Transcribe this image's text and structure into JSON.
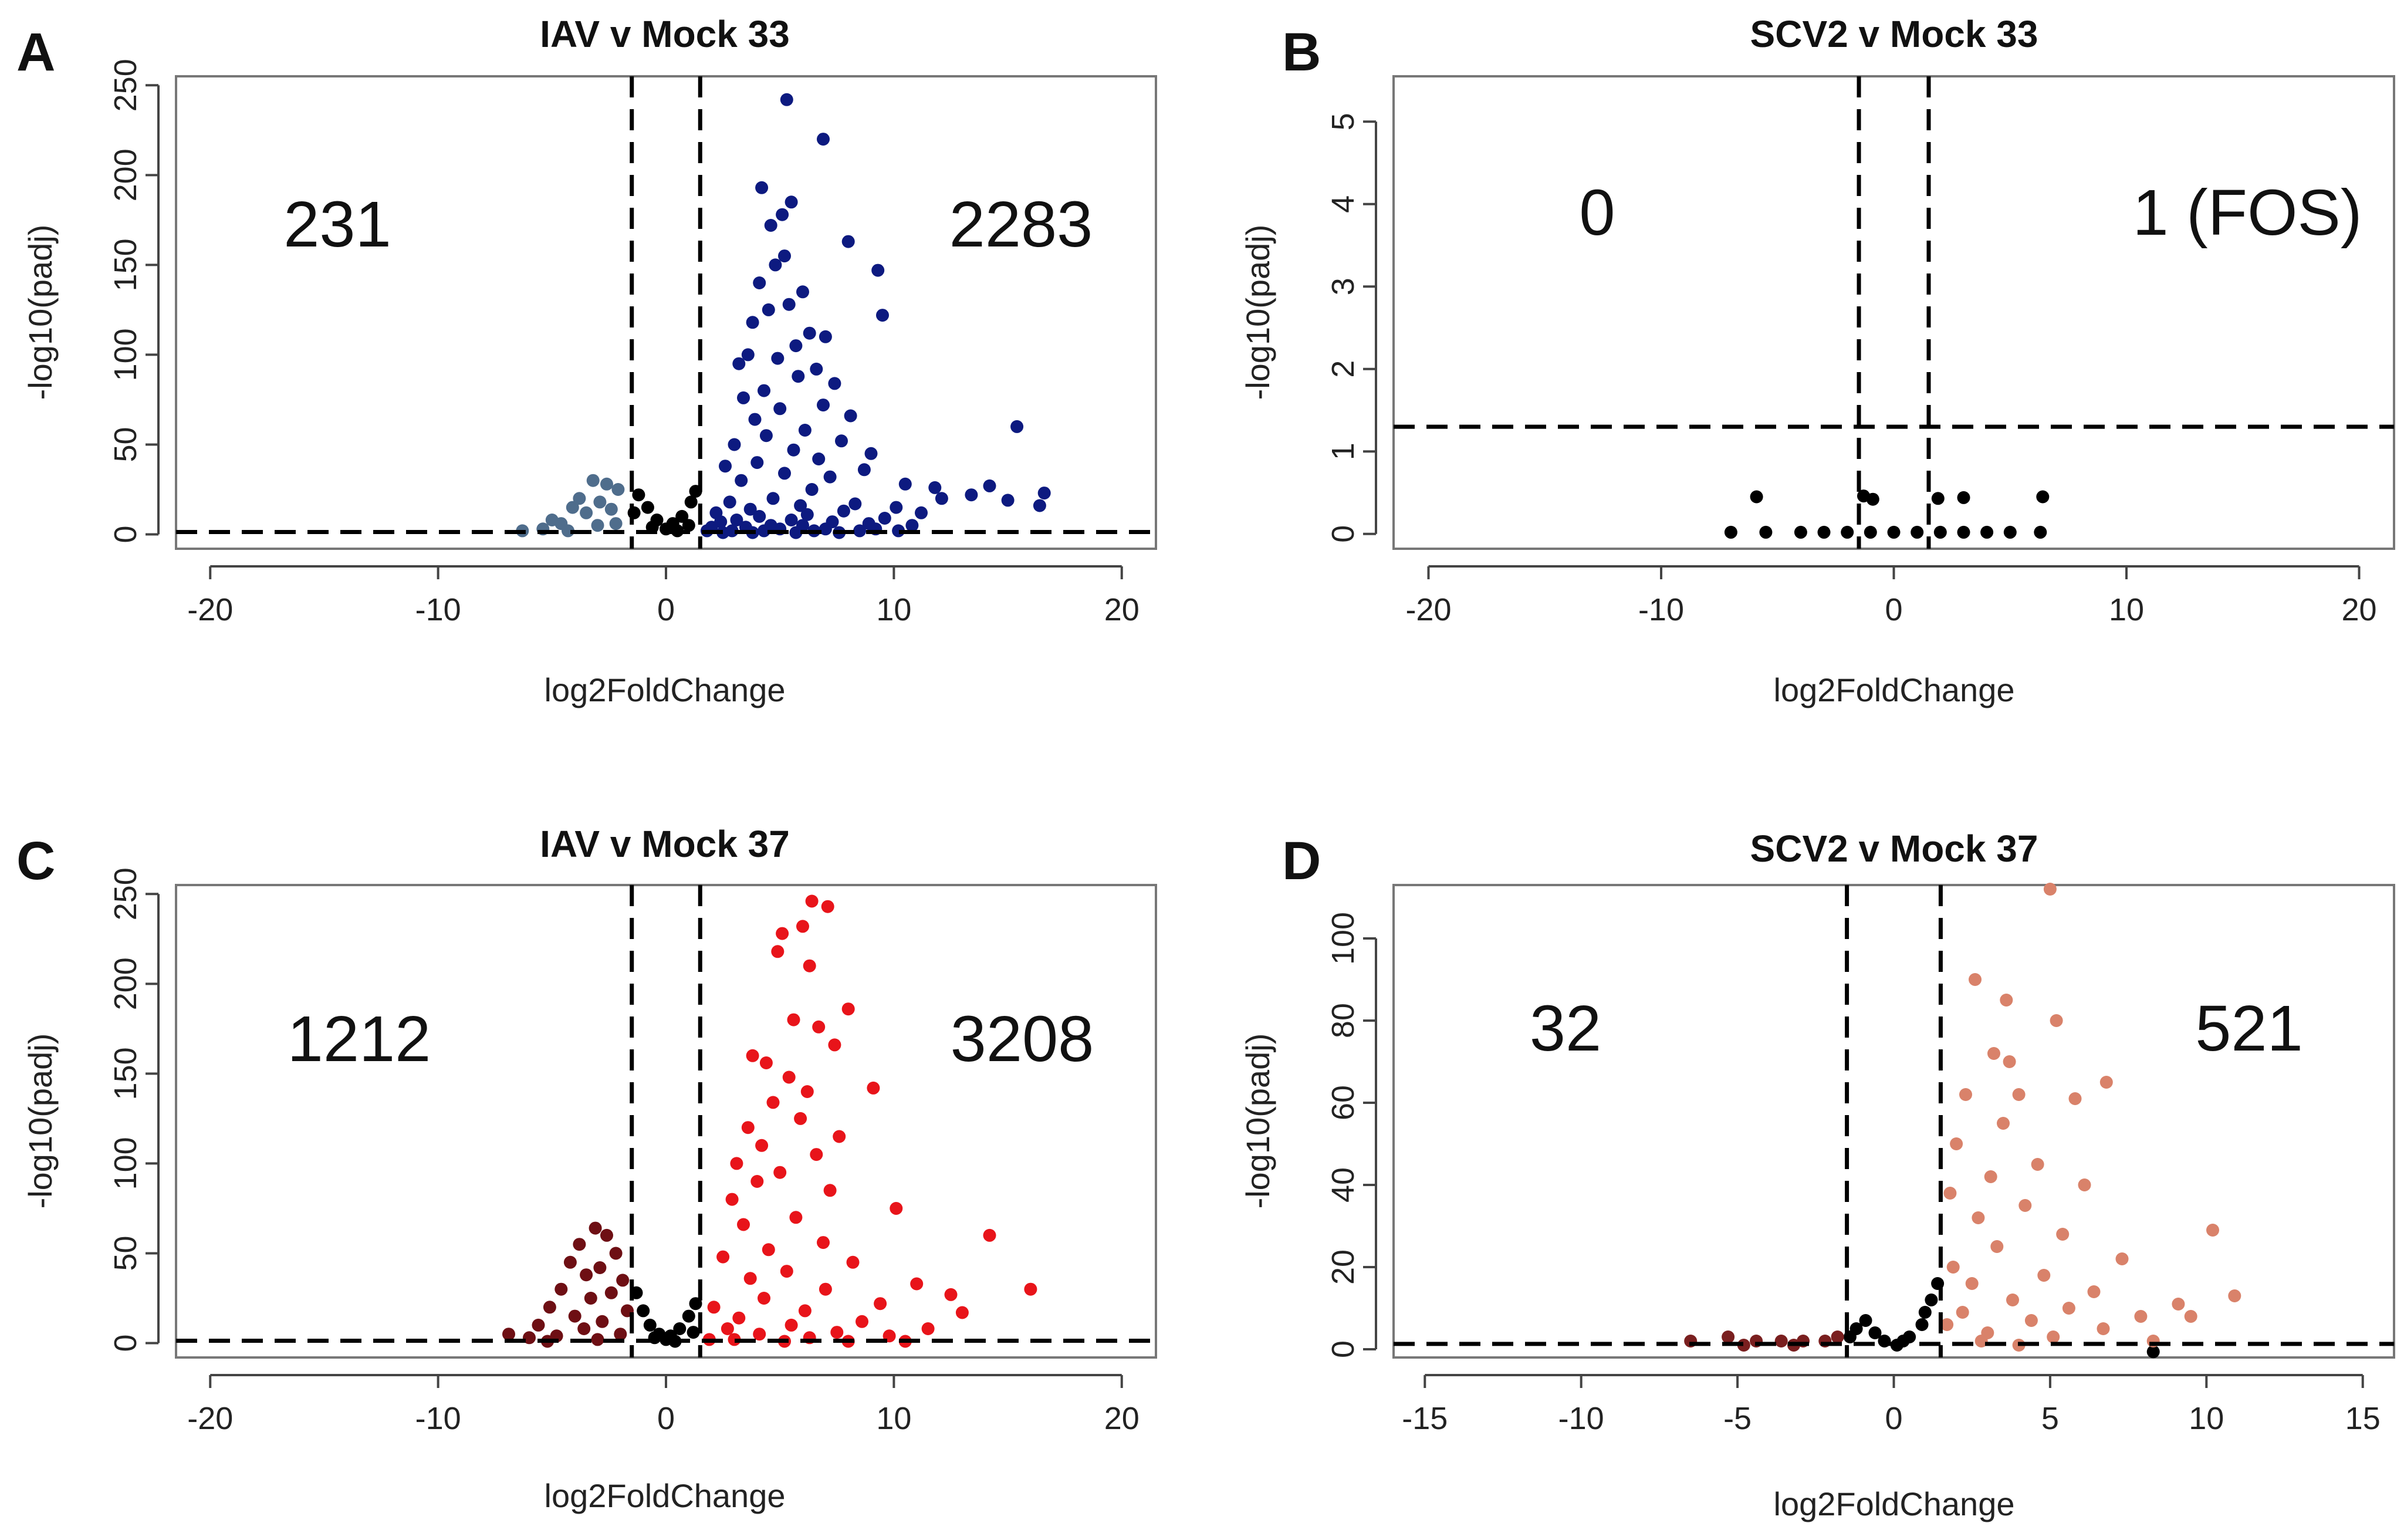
{
  "chart_data": [
    {
      "panel": "A",
      "type": "scatter",
      "title": "IAV v Mock 33",
      "xlabel": "log2FoldChange",
      "ylabel": "-log10(padj)",
      "xlim": [
        -21.5,
        21.5
      ],
      "ylim": [
        -8,
        255
      ],
      "xticks": [
        -20,
        -10,
        0,
        10,
        20
      ],
      "yticks": [
        0,
        50,
        100,
        150,
        200,
        250
      ],
      "lfc_threshold": 1.5,
      "padj_line": 1.3,
      "down_count": "231",
      "up_count": "2283",
      "colors": {
        "down": "#4f6d8c",
        "neutral": "#000000",
        "up": "#0d1a80"
      },
      "points": {
        "up": [
          [
            5.3,
            242
          ],
          [
            6.9,
            220
          ],
          [
            4.2,
            193
          ],
          [
            5.5,
            185
          ],
          [
            5.1,
            178
          ],
          [
            4.6,
            172
          ],
          [
            8.0,
            163
          ],
          [
            9.3,
            147
          ],
          [
            5.2,
            155
          ],
          [
            4.8,
            150
          ],
          [
            4.1,
            140
          ],
          [
            6.0,
            135
          ],
          [
            5.4,
            128
          ],
          [
            4.5,
            125
          ],
          [
            9.5,
            122
          ],
          [
            3.8,
            118
          ],
          [
            6.3,
            112
          ],
          [
            7.0,
            110
          ],
          [
            5.7,
            105
          ],
          [
            3.6,
            100
          ],
          [
            4.9,
            98
          ],
          [
            3.2,
            95
          ],
          [
            6.6,
            92
          ],
          [
            5.8,
            88
          ],
          [
            7.4,
            84
          ],
          [
            4.3,
            80
          ],
          [
            3.4,
            76
          ],
          [
            6.9,
            72
          ],
          [
            5.0,
            70
          ],
          [
            8.1,
            66
          ],
          [
            3.9,
            64
          ],
          [
            15.4,
            60
          ],
          [
            6.1,
            58
          ],
          [
            4.4,
            55
          ],
          [
            7.7,
            52
          ],
          [
            3.0,
            50
          ],
          [
            5.6,
            47
          ],
          [
            9.0,
            45
          ],
          [
            6.7,
            42
          ],
          [
            4.0,
            40
          ],
          [
            2.6,
            38
          ],
          [
            8.7,
            36
          ],
          [
            5.2,
            34
          ],
          [
            7.2,
            32
          ],
          [
            3.3,
            30
          ],
          [
            10.5,
            28
          ],
          [
            14.2,
            27
          ],
          [
            11.8,
            26
          ],
          [
            6.4,
            25
          ],
          [
            16.6,
            23
          ],
          [
            13.4,
            22
          ],
          [
            4.7,
            20
          ],
          [
            12.1,
            20
          ],
          [
            15.0,
            19
          ],
          [
            2.8,
            18
          ],
          [
            8.3,
            17
          ],
          [
            5.9,
            16
          ],
          [
            16.4,
            16
          ],
          [
            10.1,
            15
          ],
          [
            3.7,
            14
          ],
          [
            7.8,
            13
          ],
          [
            11.2,
            12
          ],
          [
            2.2,
            12
          ],
          [
            6.2,
            11
          ],
          [
            4.1,
            10
          ],
          [
            9.6,
            9
          ],
          [
            5.5,
            8
          ],
          [
            3.1,
            8
          ],
          [
            7.3,
            7
          ],
          [
            2.4,
            7
          ],
          [
            8.9,
            6
          ],
          [
            6.0,
            5
          ],
          [
            4.6,
            5
          ],
          [
            10.8,
            5
          ],
          [
            2.0,
            4
          ],
          [
            3.5,
            4
          ],
          [
            5.0,
            3
          ],
          [
            7.0,
            3
          ],
          [
            9.2,
            3
          ],
          [
            1.8,
            2
          ],
          [
            2.9,
            2
          ],
          [
            4.3,
            2
          ],
          [
            6.5,
            2
          ],
          [
            8.5,
            2
          ],
          [
            10.2,
            2
          ],
          [
            3.8,
            1
          ],
          [
            5.7,
            1
          ],
          [
            7.6,
            1
          ],
          [
            2.5,
            1
          ]
        ],
        "down": [
          [
            -3.2,
            30
          ],
          [
            -2.6,
            28
          ],
          [
            -2.1,
            25
          ],
          [
            -3.8,
            20
          ],
          [
            -2.9,
            18
          ],
          [
            -4.1,
            15
          ],
          [
            -2.4,
            14
          ],
          [
            -3.5,
            12
          ],
          [
            -5.0,
            8
          ],
          [
            -4.6,
            6
          ],
          [
            -2.2,
            6
          ],
          [
            -3.0,
            5
          ],
          [
            -6.3,
            2
          ],
          [
            -5.4,
            3
          ],
          [
            -4.3,
            2
          ]
        ],
        "neutral": [
          [
            -1.2,
            22
          ],
          [
            -0.8,
            15
          ],
          [
            -0.4,
            8
          ],
          [
            0.3,
            6
          ],
          [
            0.7,
            10
          ],
          [
            1.1,
            18
          ],
          [
            1.3,
            24
          ],
          [
            -1.4,
            12
          ],
          [
            0.0,
            3
          ],
          [
            -0.6,
            4
          ],
          [
            0.5,
            2
          ],
          [
            1.0,
            5
          ]
        ]
      }
    },
    {
      "panel": "B",
      "type": "scatter",
      "title": "SCV2 v Mock 33",
      "xlabel": "log2FoldChange",
      "ylabel": "-log10(padj)",
      "xlim": [
        -21.5,
        21.5
      ],
      "ylim": [
        -0.18,
        5.55
      ],
      "xticks": [
        -20,
        -10,
        0,
        10,
        20
      ],
      "yticks": [
        0,
        1,
        2,
        3,
        4,
        5
      ],
      "lfc_threshold": 1.5,
      "padj_line": 1.3,
      "down_count": "0",
      "up_count": "1 (FOS)",
      "colors": {
        "down": "#000000",
        "neutral": "#000000",
        "up": "#000000"
      },
      "points": {
        "up": [
          [
            6.4,
            0.45
          ],
          [
            1.9,
            0.43
          ],
          [
            3.0,
            0.44
          ]
        ],
        "down": [
          [
            -5.9,
            0.45
          ]
        ],
        "neutral": [
          [
            -1.3,
            0.46
          ],
          [
            -0.9,
            0.42
          ],
          [
            -7.0,
            0.02
          ],
          [
            -5.5,
            0.02
          ],
          [
            -4.0,
            0.02
          ],
          [
            -3.0,
            0.02
          ],
          [
            -2.0,
            0.02
          ],
          [
            -1.0,
            0.02
          ],
          [
            0.0,
            0.02
          ],
          [
            1.0,
            0.02
          ],
          [
            2.0,
            0.02
          ],
          [
            3.0,
            0.02
          ],
          [
            4.0,
            0.02
          ],
          [
            5.0,
            0.02
          ],
          [
            6.3,
            0.02
          ]
        ]
      }
    },
    {
      "panel": "C",
      "type": "scatter",
      "title": "IAV v Mock 37",
      "xlabel": "log2FoldChange",
      "ylabel": "-log10(padj)",
      "xlim": [
        -21.5,
        21.5
      ],
      "ylim": [
        -8,
        255
      ],
      "xticks": [
        -20,
        -10,
        0,
        10,
        20
      ],
      "yticks": [
        0,
        50,
        100,
        150,
        200,
        250
      ],
      "lfc_threshold": 1.5,
      "padj_line": 1.3,
      "down_count": "1212",
      "up_count": "3208",
      "colors": {
        "down": "#6e0f14",
        "neutral": "#000000",
        "up": "#e8141a"
      },
      "points": {
        "up": [
          [
            6.4,
            246
          ],
          [
            7.1,
            243
          ],
          [
            5.1,
            228
          ],
          [
            6.0,
            232
          ],
          [
            4.9,
            218
          ],
          [
            6.3,
            210
          ],
          [
            8.0,
            186
          ],
          [
            5.6,
            180
          ],
          [
            6.7,
            176
          ],
          [
            7.4,
            166
          ],
          [
            3.8,
            160
          ],
          [
            4.4,
            156
          ],
          [
            5.4,
            148
          ],
          [
            9.1,
            142
          ],
          [
            6.2,
            140
          ],
          [
            4.7,
            134
          ],
          [
            5.9,
            125
          ],
          [
            3.6,
            120
          ],
          [
            7.6,
            115
          ],
          [
            4.2,
            110
          ],
          [
            6.6,
            105
          ],
          [
            3.1,
            100
          ],
          [
            5.0,
            95
          ],
          [
            4.0,
            90
          ],
          [
            7.2,
            85
          ],
          [
            2.9,
            80
          ],
          [
            10.1,
            75
          ],
          [
            5.7,
            70
          ],
          [
            3.4,
            66
          ],
          [
            14.2,
            60
          ],
          [
            6.9,
            56
          ],
          [
            4.5,
            52
          ],
          [
            2.5,
            48
          ],
          [
            8.2,
            45
          ],
          [
            5.3,
            40
          ],
          [
            3.7,
            36
          ],
          [
            11.0,
            33
          ],
          [
            7.0,
            30
          ],
          [
            16.0,
            30
          ],
          [
            12.5,
            27
          ],
          [
            4.3,
            25
          ],
          [
            9.4,
            22
          ],
          [
            2.1,
            20
          ],
          [
            6.1,
            18
          ],
          [
            13.0,
            17
          ],
          [
            3.2,
            14
          ],
          [
            8.6,
            12
          ],
          [
            5.5,
            10
          ],
          [
            11.5,
            8
          ],
          [
            2.7,
            8
          ],
          [
            7.5,
            6
          ],
          [
            4.1,
            5
          ],
          [
            9.8,
            4
          ],
          [
            6.3,
            3
          ],
          [
            3.0,
            2
          ],
          [
            1.9,
            2
          ],
          [
            5.2,
            1
          ],
          [
            8.0,
            1
          ],
          [
            10.5,
            1
          ]
        ],
        "down": [
          [
            -3.1,
            64
          ],
          [
            -2.6,
            60
          ],
          [
            -3.8,
            55
          ],
          [
            -2.2,
            50
          ],
          [
            -4.2,
            45
          ],
          [
            -2.9,
            42
          ],
          [
            -3.5,
            38
          ],
          [
            -1.9,
            35
          ],
          [
            -4.6,
            30
          ],
          [
            -2.4,
            28
          ],
          [
            -3.3,
            25
          ],
          [
            -5.1,
            20
          ],
          [
            -1.7,
            18
          ],
          [
            -4.0,
            15
          ],
          [
            -2.8,
            12
          ],
          [
            -5.6,
            10
          ],
          [
            -3.6,
            8
          ],
          [
            -6.9,
            5
          ],
          [
            -2.0,
            5
          ],
          [
            -4.8,
            4
          ],
          [
            -6.0,
            3
          ],
          [
            -3.0,
            2
          ],
          [
            -5.2,
            1
          ]
        ],
        "neutral": [
          [
            -1.3,
            28
          ],
          [
            -1.0,
            18
          ],
          [
            -0.7,
            10
          ],
          [
            -0.3,
            5
          ],
          [
            0.2,
            4
          ],
          [
            0.6,
            8
          ],
          [
            1.0,
            15
          ],
          [
            1.3,
            22
          ],
          [
            0.0,
            2
          ],
          [
            -0.5,
            3
          ],
          [
            0.4,
            1
          ],
          [
            1.2,
            6
          ]
        ]
      }
    },
    {
      "panel": "D",
      "type": "scatter",
      "title": "SCV2 v Mock 37",
      "xlabel": "log2FoldChange",
      "ylabel": "-log10(padj)",
      "xlim": [
        -16,
        16
      ],
      "ylim": [
        -2,
        113
      ],
      "xticks": [
        -15,
        -10,
        -5,
        0,
        5,
        10,
        15
      ],
      "yticks": [
        0,
        20,
        40,
        60,
        80,
        100
      ],
      "lfc_threshold": 1.5,
      "padj_line": 1.3,
      "down_count": "32",
      "up_count": "521",
      "colors": {
        "down": "#7a1f1f",
        "neutral": "#000000",
        "up": "#d9826a"
      },
      "points": {
        "up": [
          [
            5.0,
            112
          ],
          [
            2.6,
            90
          ],
          [
            3.6,
            85
          ],
          [
            5.2,
            80
          ],
          [
            3.2,
            72
          ],
          [
            3.7,
            70
          ],
          [
            6.8,
            65
          ],
          [
            2.3,
            62
          ],
          [
            4.0,
            62
          ],
          [
            5.8,
            61
          ],
          [
            3.5,
            55
          ],
          [
            2.0,
            50
          ],
          [
            4.6,
            45
          ],
          [
            3.1,
            42
          ],
          [
            6.1,
            40
          ],
          [
            1.8,
            38
          ],
          [
            4.2,
            35
          ],
          [
            2.7,
            32
          ],
          [
            10.2,
            29
          ],
          [
            5.4,
            28
          ],
          [
            3.3,
            25
          ],
          [
            7.3,
            22
          ],
          [
            1.9,
            20
          ],
          [
            4.8,
            18
          ],
          [
            2.5,
            16
          ],
          [
            6.4,
            14
          ],
          [
            10.9,
            13
          ],
          [
            3.8,
            12
          ],
          [
            9.1,
            11
          ],
          [
            5.6,
            10
          ],
          [
            2.2,
            9
          ],
          [
            7.9,
            8
          ],
          [
            9.5,
            8
          ],
          [
            4.4,
            7
          ],
          [
            1.7,
            6
          ],
          [
            6.7,
            5
          ],
          [
            3.0,
            4
          ],
          [
            5.1,
            3
          ],
          [
            8.3,
            2
          ],
          [
            2.8,
            2
          ],
          [
            4.0,
            1
          ]
        ],
        "down": [
          [
            -6.5,
            2
          ],
          [
            -5.3,
            3
          ],
          [
            -4.4,
            2
          ],
          [
            -3.6,
            2
          ],
          [
            -2.9,
            2
          ],
          [
            -2.2,
            2
          ],
          [
            -1.8,
            3
          ],
          [
            -4.8,
            1
          ],
          [
            -3.2,
            1
          ]
        ],
        "neutral": [
          [
            -1.2,
            5
          ],
          [
            -0.9,
            7
          ],
          [
            -0.6,
            4
          ],
          [
            -0.3,
            2
          ],
          [
            0.1,
            1
          ],
          [
            0.5,
            3
          ],
          [
            0.9,
            6
          ],
          [
            1.2,
            12
          ],
          [
            1.4,
            16
          ],
          [
            1.0,
            9
          ],
          [
            -1.4,
            3
          ],
          [
            0.3,
            2
          ],
          [
            8.3,
            -0.6
          ]
        ]
      }
    }
  ]
}
